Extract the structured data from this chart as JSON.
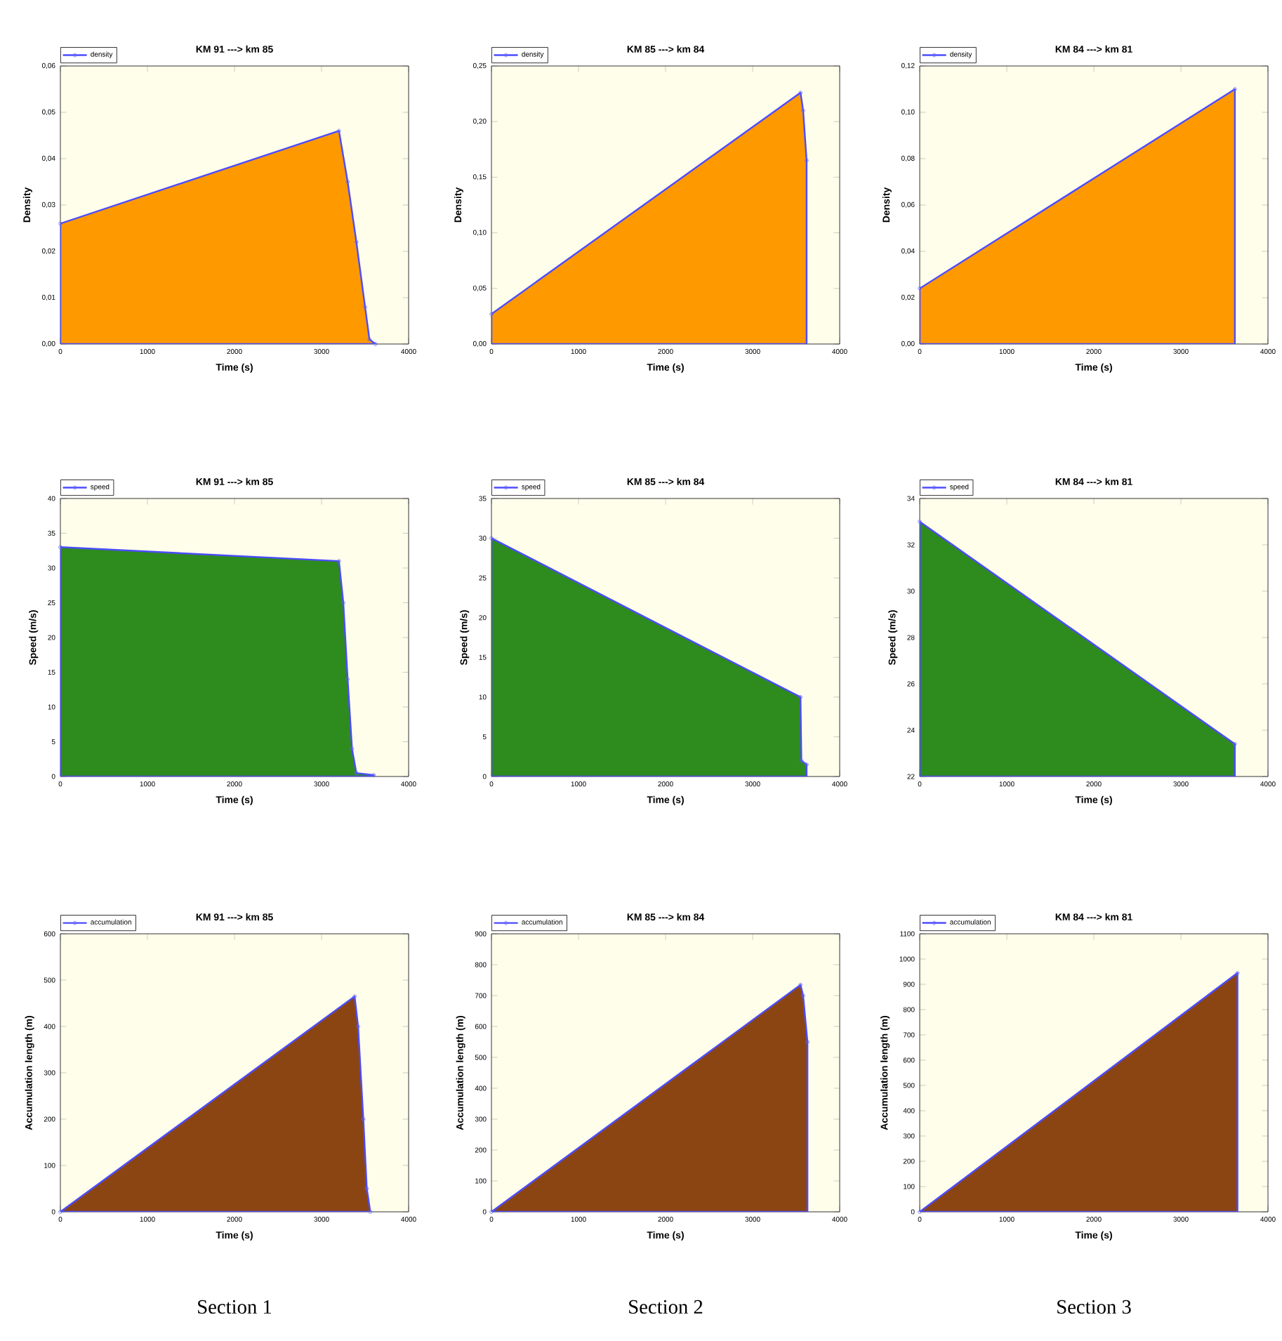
{
  "chart_data": [
    {
      "type": "area",
      "title": "KM 91 ---> km 85",
      "xlabel": "Time (s)",
      "ylabel": "Density",
      "legend": "top left",
      "marker": "circle",
      "xlim": [
        0,
        4000
      ],
      "xticks": [
        0,
        1000,
        2000,
        3000,
        4000
      ],
      "ylim": [
        0,
        0.06
      ],
      "yticks": [
        {
          "value": 0,
          "label": "0,00"
        },
        {
          "value": 0.01,
          "label": "0,01"
        },
        {
          "value": 0.02,
          "label": "0,02"
        },
        {
          "value": 0.03,
          "label": "0,03"
        },
        {
          "value": 0.04,
          "label": "0,04"
        },
        {
          "value": 0.05,
          "label": "0,05"
        },
        {
          "value": 0.06,
          "label": "0,06"
        }
      ],
      "series": [
        {
          "name": "density",
          "color": "#ff9900",
          "x": [
            0,
            3200,
            3300,
            3400,
            3500,
            3550,
            3620
          ],
          "values": [
            0.026,
            0.046,
            0.035,
            0.022,
            0.008,
            0.001,
            0.0
          ]
        }
      ]
    },
    {
      "type": "area",
      "title": "KM 85 ---> km 84",
      "xlabel": "Time (s)",
      "ylabel": "Density",
      "legend": "top left",
      "marker": "circle",
      "xlim": [
        0,
        4000
      ],
      "xticks": [
        0,
        1000,
        2000,
        3000,
        4000
      ],
      "ylim": [
        0,
        0.25
      ],
      "yticks": [
        {
          "value": 0,
          "label": "0,00"
        },
        {
          "value": 0.05,
          "label": "0,05"
        },
        {
          "value": 0.1,
          "label": "0,10"
        },
        {
          "value": 0.15,
          "label": "0,15"
        },
        {
          "value": 0.2,
          "label": "0,20"
        },
        {
          "value": 0.25,
          "label": "0,25"
        }
      ],
      "series": [
        {
          "name": "density",
          "color": "#ff9900",
          "x": [
            0,
            3550,
            3580,
            3620
          ],
          "values": [
            0.027,
            0.226,
            0.21,
            0.165
          ]
        }
      ]
    },
    {
      "type": "area",
      "title": "KM 84 ---> km 81",
      "xlabel": "Time (s)",
      "ylabel": "Density",
      "legend": "top left",
      "marker": "circle",
      "xlim": [
        0,
        4000
      ],
      "xticks": [
        0,
        1000,
        2000,
        3000,
        4000
      ],
      "ylim": [
        0,
        0.12
      ],
      "yticks": [
        {
          "value": 0,
          "label": "0,00"
        },
        {
          "value": 0.02,
          "label": "0,02"
        },
        {
          "value": 0.04,
          "label": "0,04"
        },
        {
          "value": 0.06,
          "label": "0,06"
        },
        {
          "value": 0.08,
          "label": "0,08"
        },
        {
          "value": 0.1,
          "label": "0,10"
        },
        {
          "value": 0.12,
          "label": "0,12"
        }
      ],
      "series": [
        {
          "name": "density",
          "color": "#ff9900",
          "x": [
            0,
            3620
          ],
          "values": [
            0.024,
            0.11
          ]
        }
      ]
    },
    {
      "type": "area",
      "title": "KM 91 ---> km 85",
      "xlabel": "Time (s)",
      "ylabel": "Speed (m/s)",
      "legend": "top left",
      "marker": "circle",
      "xlim": [
        0,
        4000
      ],
      "xticks": [
        0,
        1000,
        2000,
        3000,
        4000
      ],
      "ylim": [
        0,
        40
      ],
      "yticks": [
        0,
        5,
        10,
        15,
        20,
        25,
        30,
        35,
        40
      ],
      "series": [
        {
          "name": "speed",
          "color": "#2e8b1e",
          "x": [
            0,
            3200,
            3250,
            3300,
            3350,
            3400,
            3600
          ],
          "values": [
            33,
            31,
            25,
            14,
            4,
            0.5,
            0.2
          ]
        }
      ]
    },
    {
      "type": "area",
      "title": "KM 85 ---> km 84",
      "xlabel": "Time (s)",
      "ylabel": "Speed (m/s)",
      "legend": "top left",
      "marker": "circle",
      "xlim": [
        0,
        4000
      ],
      "xticks": [
        0,
        1000,
        2000,
        3000,
        4000
      ],
      "ylim": [
        0,
        35
      ],
      "yticks": [
        0,
        5,
        10,
        15,
        20,
        25,
        30,
        35
      ],
      "series": [
        {
          "name": "speed",
          "color": "#2e8b1e",
          "x": [
            0,
            3550,
            3560,
            3620
          ],
          "values": [
            30,
            10,
            2,
            1.5
          ]
        }
      ]
    },
    {
      "type": "area",
      "title": "KM 84 ---> km 81",
      "xlabel": "Time (s)",
      "ylabel": "Speed (m/s)",
      "legend": "top left",
      "marker": "circle",
      "xlim": [
        0,
        4000
      ],
      "xticks": [
        0,
        1000,
        2000,
        3000,
        4000
      ],
      "ylim": [
        22,
        34
      ],
      "yticks": [
        22,
        24,
        26,
        28,
        30,
        32,
        34
      ],
      "series": [
        {
          "name": "speed",
          "color": "#2e8b1e",
          "x": [
            0,
            3620
          ],
          "values": [
            33,
            23.4
          ]
        }
      ]
    },
    {
      "type": "area",
      "title": "KM 91 ---> km 85",
      "xlabel": "Time (s)",
      "ylabel": "Accumulation length (m)",
      "legend": "top left",
      "marker": "circle",
      "xlim": [
        0,
        4000
      ],
      "xticks": [
        0,
        1000,
        2000,
        3000,
        4000
      ],
      "ylim": [
        0,
        600
      ],
      "yticks": [
        0,
        100,
        200,
        300,
        400,
        500,
        600
      ],
      "annotations": [
        "Section 1"
      ],
      "series": [
        {
          "name": "accumulation",
          "color": "#8b4513",
          "x": [
            0,
            3380,
            3420,
            3480,
            3520,
            3560
          ],
          "values": [
            0,
            465,
            400,
            200,
            50,
            0
          ]
        }
      ]
    },
    {
      "type": "area",
      "title": "KM 85 ---> km 84",
      "xlabel": "Time (s)",
      "ylabel": "Accumulation length (m)",
      "legend": "top left",
      "marker": "circle",
      "xlim": [
        0,
        4000
      ],
      "xticks": [
        0,
        1000,
        2000,
        3000,
        4000
      ],
      "ylim": [
        0,
        900
      ],
      "yticks": [
        0,
        100,
        200,
        300,
        400,
        500,
        600,
        700,
        800,
        900
      ],
      "annotations": [
        "Section 2"
      ],
      "series": [
        {
          "name": "accumulation",
          "color": "#8b4513",
          "x": [
            0,
            3550,
            3580,
            3630
          ],
          "values": [
            0,
            735,
            700,
            550
          ]
        }
      ]
    },
    {
      "type": "area",
      "title": "KM 84 ---> km 81",
      "xlabel": "Time (s)",
      "ylabel": "Accumulation length (m)",
      "legend": "top left",
      "marker": "circle",
      "xlim": [
        0,
        4000
      ],
      "xticks": [
        0,
        1000,
        2000,
        3000,
        4000
      ],
      "ylim": [
        0,
        1100
      ],
      "yticks": [
        0,
        100,
        200,
        300,
        400,
        500,
        600,
        700,
        800,
        900,
        1000,
        1100
      ],
      "annotations": [
        "Section 3"
      ],
      "series": [
        {
          "name": "accumulation",
          "color": "#8b4513",
          "x": [
            0,
            3650
          ],
          "values": [
            0,
            945
          ]
        }
      ]
    }
  ]
}
